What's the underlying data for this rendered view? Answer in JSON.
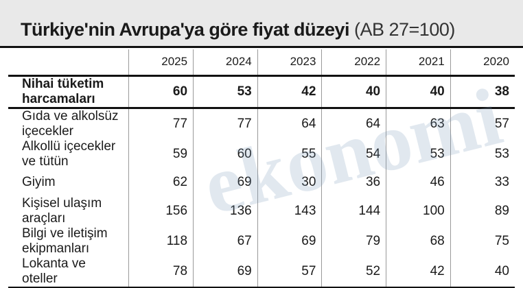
{
  "header": {
    "title": "Türkiye'nin Avrupa'ya göre fiyat düzeyi",
    "subtitle": "(AB 27=100)"
  },
  "table": {
    "columns": [
      "2025",
      "2024",
      "2023",
      "2022",
      "2021",
      "2020"
    ],
    "rows": [
      {
        "label": "Nihai tüketim harcamaları",
        "values": [
          60,
          53,
          42,
          40,
          40,
          38
        ]
      },
      {
        "label": "Gıda ve alkolsüz içecekler",
        "values": [
          77,
          77,
          64,
          64,
          63,
          57
        ]
      },
      {
        "label": "Alkollü içecekler ve tütün",
        "values": [
          59,
          60,
          55,
          54,
          53,
          53
        ]
      },
      {
        "label": "Giyim",
        "values": [
          62,
          69,
          30,
          36,
          46,
          33
        ]
      },
      {
        "label": "Kişisel ulaşım araçları",
        "values": [
          156,
          136,
          143,
          144,
          100,
          89
        ]
      },
      {
        "label": "Bilgi ve iletişim ekipmanları",
        "values": [
          118,
          67,
          69,
          79,
          68,
          75
        ]
      },
      {
        "label": "Lokanta ve oteller",
        "values": [
          78,
          69,
          57,
          52,
          42,
          40
        ]
      }
    ]
  },
  "watermark": "ekonomi"
}
